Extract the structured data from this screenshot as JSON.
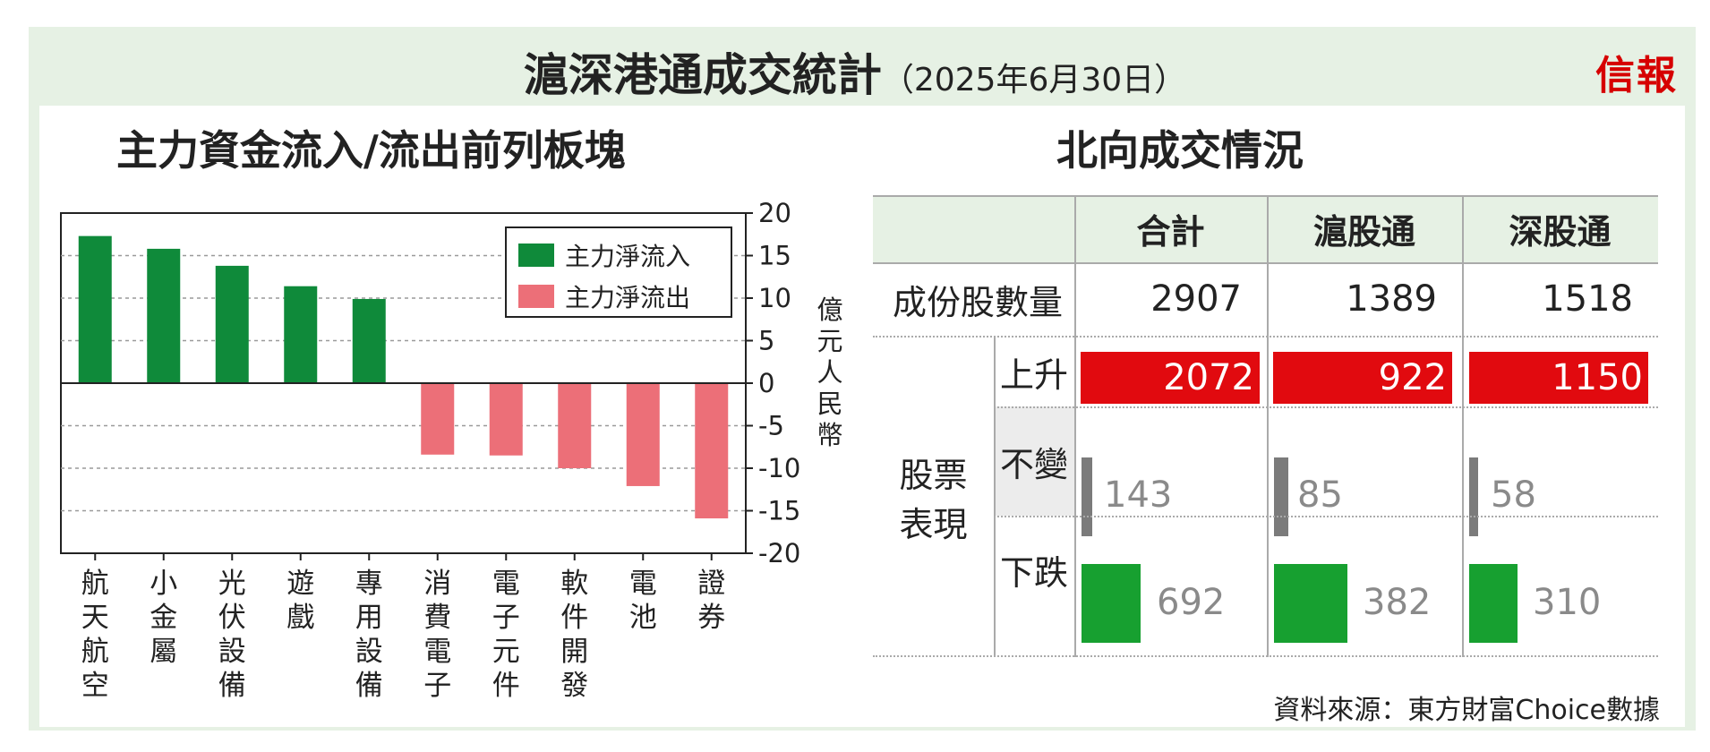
{
  "header": {
    "title": "滬深港通成交統計",
    "date": "（2025年6月30日）",
    "logo": "信報"
  },
  "chart_data": {
    "type": "bar",
    "title": "主力資金流入/流出前列板塊",
    "ylabel": "億元人民幣",
    "ylim": [
      -20,
      20
    ],
    "yticks": [
      20,
      15,
      10,
      5,
      0,
      -5,
      -10,
      -15,
      -20
    ],
    "categories": [
      "航天航空",
      "小金屬",
      "光伏設備",
      "遊戲",
      "專用設備",
      "消費電子",
      "電子元件",
      "軟件開發",
      "電池",
      "證券"
    ],
    "series": [
      {
        "name": "主力淨流入",
        "color": "#0f8a3a",
        "values": [
          17.3,
          15.8,
          13.8,
          11.4,
          9.9,
          null,
          null,
          null,
          null,
          null
        ]
      },
      {
        "name": "主力淨流出",
        "color": "#ec6f78",
        "values": [
          null,
          null,
          null,
          null,
          null,
          -8.4,
          -8.5,
          -10,
          -12.1,
          -15.9
        ]
      }
    ],
    "grid": true,
    "legend_position": "top-right"
  },
  "table": {
    "title": "北向成交情況",
    "columns": [
      "合計",
      "滬股通",
      "深股通"
    ],
    "constituents_label": "成份股數量",
    "constituents": [
      "2907",
      "1389",
      "1518"
    ],
    "group_label": [
      "股票",
      "表現"
    ],
    "rows": [
      {
        "label": "上升",
        "values": [
          "2072",
          "922",
          "1150"
        ],
        "color": "#e10a0f",
        "fractions": [
          1.0,
          1.0,
          1.0
        ]
      },
      {
        "label": "不變",
        "values": [
          "143",
          "85",
          "58"
        ],
        "color": "#7b7b7b",
        "fractions": [
          0.069,
          0.092,
          0.05
        ]
      },
      {
        "label": "下跌",
        "values": [
          "692",
          "382",
          "310"
        ],
        "color": "#17a030",
        "fractions": [
          0.334,
          0.414,
          0.27
        ]
      }
    ]
  },
  "source": "資料來源：東方財富Choice數據"
}
